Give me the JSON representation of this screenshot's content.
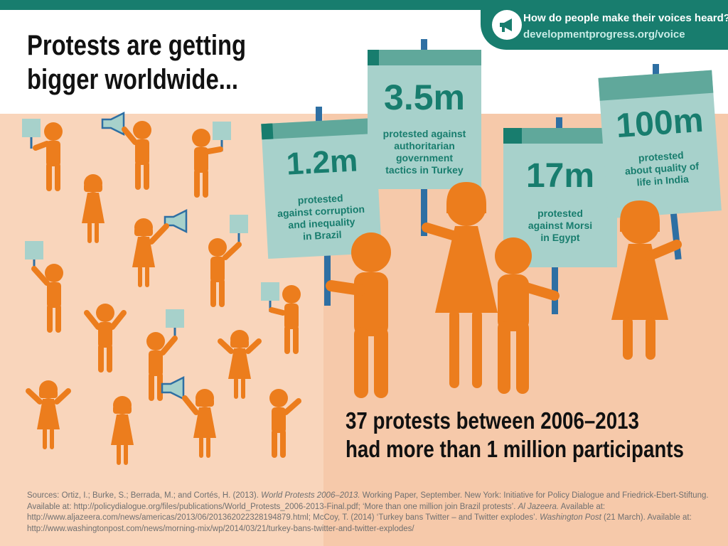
{
  "header": {
    "question": "How do people make their voices heard?",
    "url": "developmentprogress.org/voice",
    "icon": "megaphone-icon"
  },
  "headline": {
    "line1": "Protests are getting",
    "line2": "bigger worldwide..."
  },
  "signs": [
    {
      "figure": "1.2m",
      "text_lines": [
        "protested",
        "against corruption",
        "and inequality",
        "in Brazil"
      ]
    },
    {
      "figure": "3.5m",
      "text_lines": [
        "protested against",
        "authoritarian",
        "government",
        "tactics in Turkey"
      ]
    },
    {
      "figure": "17m",
      "text_lines": [
        "protested",
        "against Morsi",
        "in Egypt"
      ]
    },
    {
      "figure": "100m",
      "text_lines": [
        "protested",
        "about quality of",
        "life in India"
      ]
    }
  ],
  "summary": {
    "line1": "37 protests between 2006–2013",
    "line2": "had more than 1 million participants"
  },
  "sources": [
    {
      "t": "Sources: Ortiz, I.; Burke, S.; Berrada, M.; and Cortés, H. (2013). "
    },
    {
      "t": "World Protests 2006–2013.",
      "i": true
    },
    {
      "t": " Working Paper, September. New York: Initiative for Policy Dialogue and Friedrick-Ebert-Stiftung. Available at: http://policydialogue.org/files/publications/World_Protests_2006-2013-Final.pdf; ‘More than one million join Brazil protests’. "
    },
    {
      "t": "Al Jazeera.",
      "i": true
    },
    {
      "t": " Available at: http://www.aljazeera.com/news/americas/2013/06/201362022328194879.html; McCoy, T. (2014) ‘Turkey bans Twitter – and Twitter explodes’. "
    },
    {
      "t": "Washington Post",
      "i": true
    },
    {
      "t": " (21 March). Available at: http://www.washingtonpost.com/news/morning-mix/wp/2014/03/21/turkey-bans-twitter-and-twitter-explodes/"
    }
  ],
  "colors": {
    "teal": "#187d6e",
    "sign": "#a7d1cb",
    "sign_band": "#60a89b",
    "pole": "#2e6fa3",
    "figure": "#ec7d1d",
    "bg_peach": "#f9d5bb",
    "bg_peach_light": "#fce3d1"
  }
}
